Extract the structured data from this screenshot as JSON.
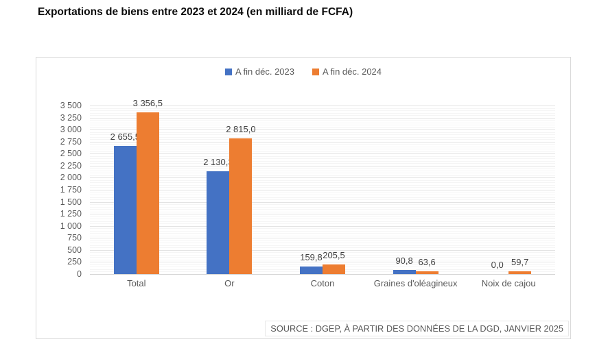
{
  "title": "Exportations de biens entre 2023 et 2024 (en milliard de FCFA)",
  "source": "SOURCE : DGEP, À PARTIR DES DONNÉES DE LA DGD, JANVIER 2025",
  "colors": {
    "series_2023": "#4472C4",
    "series_2024": "#ED7D31",
    "grid_major": "#e3e3e3",
    "grid_minor": "#f5f5f5",
    "axis_text": "#595959",
    "label_text": "#3f3f3f"
  },
  "chart_data": {
    "type": "bar",
    "title": "Exportations de biens entre 2023 et 2024 (en milliard de FCFA)",
    "categories": [
      "Total",
      "Or",
      "Coton",
      "Graines d'oléagineux",
      "Noix de cajou"
    ],
    "series": [
      {
        "name": "A fin déc. 2023",
        "color": "#4472C4",
        "values": [
          2655.5,
          2130.3,
          159.8,
          90.8,
          0.0
        ],
        "value_labels": [
          "2 655,5",
          "2 130,3",
          "159,8",
          "90,8",
          "0,0"
        ]
      },
      {
        "name": "A fin déc. 2024",
        "color": "#ED7D31",
        "values": [
          3356.5,
          2815.0,
          205.5,
          63.6,
          59.7
        ],
        "value_labels": [
          "3 356,5",
          "2 815,0",
          "205,5",
          "63,6",
          "59,7"
        ]
      }
    ],
    "xlabel": "",
    "ylabel": "",
    "ylim": [
      0,
      3500
    ],
    "ytick_step": 250,
    "minor_tick_step": 50,
    "ytick_labels": [
      "0",
      "250",
      "500",
      "750",
      "1 000",
      "1 250",
      "1 500",
      "1 750",
      "2 000",
      "2 250",
      "2 500",
      "2 750",
      "3 000",
      "3 250",
      "3 500"
    ],
    "grid": true,
    "minor_grid": true,
    "legend_position": "top",
    "source_note": "SOURCE : DGEP, À PARTIR DES DONNÉES DE LA DGD, JANVIER 2025"
  }
}
